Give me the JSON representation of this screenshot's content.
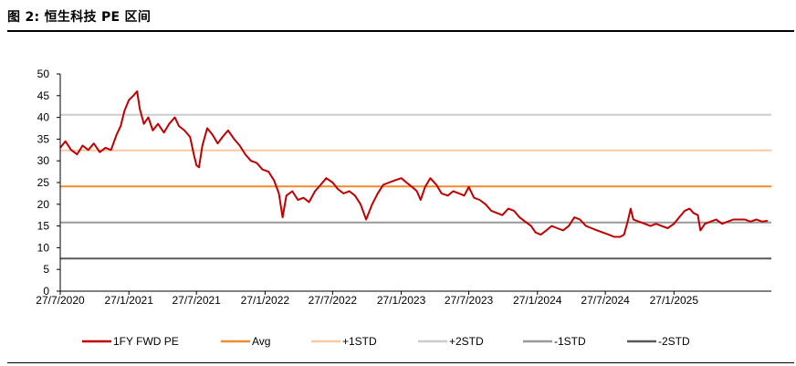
{
  "figure": {
    "title": "图 2: 恒生科技 PE 区间"
  },
  "chart_data": {
    "type": "line",
    "title": "",
    "xlabel": "",
    "ylabel": "",
    "ylim": [
      0,
      50
    ],
    "yticks": [
      0,
      5,
      10,
      15,
      20,
      25,
      30,
      35,
      40,
      45,
      50
    ],
    "xlim": [
      "2020-07-27",
      "2025-10-15"
    ],
    "xticks": [
      "27/7/2020",
      "27/1/2021",
      "27/7/2021",
      "27/1/2022",
      "27/7/2022",
      "27/1/2023",
      "27/7/2023",
      "27/1/2024",
      "27/7/2024",
      "27/1/2025"
    ],
    "grid": false,
    "legend_position": "bottom",
    "reference_lines": [
      {
        "name": "Avg",
        "value": 24.1,
        "color": "#f28a2e"
      },
      {
        "name": "+1STD",
        "value": 32.4,
        "color": "#f9c9a6"
      },
      {
        "name": "+2STD",
        "value": 40.6,
        "color": "#cccccc"
      },
      {
        "name": "-1STD",
        "value": 15.8,
        "color": "#999999"
      },
      {
        "name": "-2STD",
        "value": 7.5,
        "color": "#595959"
      }
    ],
    "series": [
      {
        "name": "1FY FWD PE",
        "color": "#c00000",
        "points": [
          [
            "2020-07-27",
            33.0
          ],
          [
            "2020-08-10",
            34.5
          ],
          [
            "2020-08-25",
            32.5
          ],
          [
            "2020-09-10",
            31.5
          ],
          [
            "2020-09-25",
            33.5
          ],
          [
            "2020-10-10",
            32.5
          ],
          [
            "2020-10-25",
            34.0
          ],
          [
            "2020-11-10",
            32.0
          ],
          [
            "2020-11-25",
            33.0
          ],
          [
            "2020-12-10",
            32.5
          ],
          [
            "2020-12-25",
            36.0
          ],
          [
            "2021-01-05",
            38.0
          ],
          [
            "2021-01-15",
            41.5
          ],
          [
            "2021-01-27",
            44.0
          ],
          [
            "2021-02-08",
            45.0
          ],
          [
            "2021-02-18",
            46.0
          ],
          [
            "2021-02-25",
            42.0
          ],
          [
            "2021-03-08",
            38.5
          ],
          [
            "2021-03-20",
            40.0
          ],
          [
            "2021-04-01",
            37.0
          ],
          [
            "2021-04-15",
            38.5
          ],
          [
            "2021-05-01",
            36.5
          ],
          [
            "2021-05-15",
            38.5
          ],
          [
            "2021-05-30",
            40.0
          ],
          [
            "2021-06-10",
            38.0
          ],
          [
            "2021-06-25",
            37.0
          ],
          [
            "2021-07-10",
            35.5
          ],
          [
            "2021-07-20",
            31.5
          ],
          [
            "2021-07-27",
            29.0
          ],
          [
            "2021-08-03",
            28.5
          ],
          [
            "2021-08-12",
            33.5
          ],
          [
            "2021-08-25",
            37.5
          ],
          [
            "2021-09-08",
            36.0
          ],
          [
            "2021-09-22",
            34.0
          ],
          [
            "2021-10-05",
            35.5
          ],
          [
            "2021-10-20",
            37.0
          ],
          [
            "2021-11-05",
            35.0
          ],
          [
            "2021-11-20",
            33.5
          ],
          [
            "2021-12-05",
            31.5
          ],
          [
            "2021-12-20",
            30.0
          ],
          [
            "2022-01-05",
            29.5
          ],
          [
            "2022-01-20",
            28.0
          ],
          [
            "2022-02-05",
            27.5
          ],
          [
            "2022-02-20",
            25.5
          ],
          [
            "2022-03-05",
            22.5
          ],
          [
            "2022-03-15",
            17.0
          ],
          [
            "2022-03-25",
            22.0
          ],
          [
            "2022-04-10",
            23.0
          ],
          [
            "2022-04-25",
            21.0
          ],
          [
            "2022-05-10",
            21.5
          ],
          [
            "2022-05-25",
            20.5
          ],
          [
            "2022-06-10",
            23.0
          ],
          [
            "2022-06-25",
            24.5
          ],
          [
            "2022-07-10",
            26.0
          ],
          [
            "2022-07-27",
            25.0
          ],
          [
            "2022-08-10",
            23.5
          ],
          [
            "2022-08-25",
            22.5
          ],
          [
            "2022-09-10",
            23.0
          ],
          [
            "2022-09-25",
            22.0
          ],
          [
            "2022-10-10",
            20.0
          ],
          [
            "2022-10-25",
            16.5
          ],
          [
            "2022-11-10",
            20.0
          ],
          [
            "2022-11-25",
            22.5
          ],
          [
            "2022-12-10",
            24.5
          ],
          [
            "2022-12-25",
            25.0
          ],
          [
            "2023-01-10",
            25.5
          ],
          [
            "2023-01-27",
            26.0
          ],
          [
            "2023-02-10",
            25.0
          ],
          [
            "2023-02-25",
            24.0
          ],
          [
            "2023-03-10",
            23.0
          ],
          [
            "2023-03-20",
            21.0
          ],
          [
            "2023-04-01",
            24.0
          ],
          [
            "2023-04-15",
            26.0
          ],
          [
            "2023-05-01",
            24.5
          ],
          [
            "2023-05-15",
            22.5
          ],
          [
            "2023-06-01",
            22.0
          ],
          [
            "2023-06-15",
            23.0
          ],
          [
            "2023-07-01",
            22.5
          ],
          [
            "2023-07-15",
            22.0
          ],
          [
            "2023-07-27",
            24.0
          ],
          [
            "2023-08-10",
            21.5
          ],
          [
            "2023-08-25",
            21.0
          ],
          [
            "2023-09-10",
            20.0
          ],
          [
            "2023-09-25",
            18.5
          ],
          [
            "2023-10-10",
            18.0
          ],
          [
            "2023-10-25",
            17.5
          ],
          [
            "2023-11-10",
            19.0
          ],
          [
            "2023-11-25",
            18.5
          ],
          [
            "2023-12-10",
            17.0
          ],
          [
            "2023-12-25",
            16.0
          ],
          [
            "2024-01-10",
            15.0
          ],
          [
            "2024-01-22",
            13.5
          ],
          [
            "2024-02-05",
            13.0
          ],
          [
            "2024-02-20",
            14.0
          ],
          [
            "2024-03-05",
            15.0
          ],
          [
            "2024-03-20",
            14.5
          ],
          [
            "2024-04-05",
            14.0
          ],
          [
            "2024-04-20",
            15.0
          ],
          [
            "2024-05-05",
            17.0
          ],
          [
            "2024-05-20",
            16.5
          ],
          [
            "2024-06-05",
            15.0
          ],
          [
            "2024-06-20",
            14.5
          ],
          [
            "2024-07-05",
            14.0
          ],
          [
            "2024-07-20",
            13.5
          ],
          [
            "2024-08-05",
            13.0
          ],
          [
            "2024-08-20",
            12.5
          ],
          [
            "2024-09-05",
            12.5
          ],
          [
            "2024-09-15",
            13.0
          ],
          [
            "2024-09-25",
            16.0
          ],
          [
            "2024-10-03",
            19.0
          ],
          [
            "2024-10-10",
            16.5
          ],
          [
            "2024-10-25",
            16.0
          ],
          [
            "2024-11-10",
            15.5
          ],
          [
            "2024-11-25",
            15.0
          ],
          [
            "2024-12-10",
            15.5
          ],
          [
            "2024-12-25",
            15.0
          ],
          [
            "2025-01-10",
            14.5
          ],
          [
            "2025-01-27",
            15.5
          ],
          [
            "2025-02-10",
            17.0
          ],
          [
            "2025-02-25",
            18.5
          ],
          [
            "2025-03-10",
            19.0
          ],
          [
            "2025-03-20",
            18.0
          ],
          [
            "2025-04-01",
            17.5
          ],
          [
            "2025-04-08",
            14.0
          ],
          [
            "2025-04-20",
            15.5
          ],
          [
            "2025-05-05",
            16.0
          ],
          [
            "2025-05-20",
            16.5
          ],
          [
            "2025-06-05",
            15.5
          ],
          [
            "2025-06-20",
            16.0
          ],
          [
            "2025-07-05",
            16.5
          ],
          [
            "2025-07-20",
            16.5
          ],
          [
            "2025-08-05",
            16.5
          ],
          [
            "2025-08-20",
            16.0
          ],
          [
            "2025-09-05",
            16.5
          ],
          [
            "2025-09-20",
            16.0
          ],
          [
            "2025-10-05",
            16.2
          ]
        ]
      }
    ],
    "legend": [
      {
        "label": "1FY FWD PE",
        "color": "#c00000"
      },
      {
        "label": "Avg",
        "color": "#f28a2e"
      },
      {
        "label": "+1STD",
        "color": "#f9c9a6"
      },
      {
        "label": "+2STD",
        "color": "#cccccc"
      },
      {
        "label": "-1STD",
        "color": "#999999"
      },
      {
        "label": "-2STD",
        "color": "#595959"
      }
    ]
  }
}
